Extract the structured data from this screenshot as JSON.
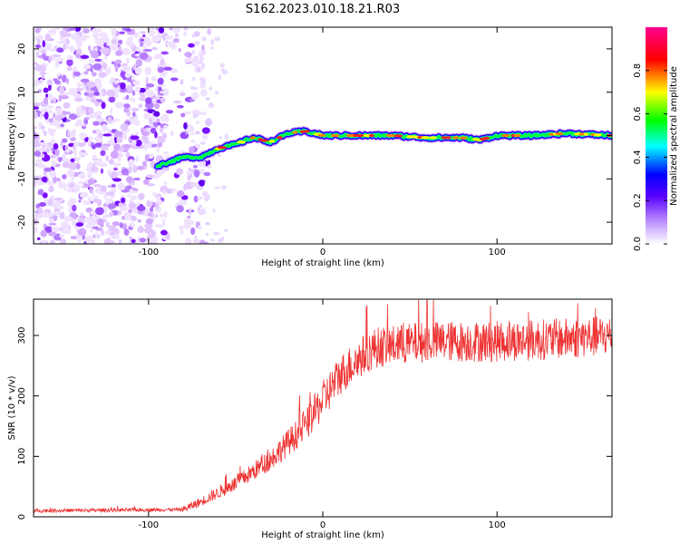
{
  "title": "S162.2023.010.18.21.R03",
  "chart_data": [
    {
      "type": "heatmap",
      "xlabel": "Height of straight line (km)",
      "ylabel": "Frequency (Hz)",
      "xlim": [
        -166,
        166
      ],
      "ylim": [
        -25,
        25
      ],
      "xticks": [
        -100,
        0,
        100
      ],
      "yticks": [
        -20,
        -10,
        0,
        10,
        20
      ],
      "colorbar": {
        "label": "Normalized spectral amplitude",
        "range": [
          0,
          1
        ],
        "ticks": [
          0.0,
          0.2,
          0.4,
          0.6,
          0.8
        ],
        "colors": [
          "#ffffff",
          "#6a00ff",
          "#0000ff",
          "#00ffff",
          "#00ff00",
          "#ffff00",
          "#ff0000",
          "#ff0090"
        ]
      },
      "ridge": {
        "x": [
          -95,
          -80,
          -70,
          -60,
          -50,
          -40,
          -30,
          -20,
          -10,
          0,
          20,
          40,
          60,
          80,
          90,
          100,
          120,
          140,
          166
        ],
        "freq": [
          -7,
          -5,
          -5,
          -3,
          -2,
          -0.5,
          -1.5,
          0.5,
          1,
          0,
          0,
          0,
          -0.5,
          -0.5,
          -1,
          0,
          0,
          0.5,
          0
        ]
      },
      "noise_region_x": [
        -166,
        -75
      ]
    },
    {
      "type": "line",
      "xlabel": "Height of straight line (km)",
      "ylabel": "SNR (10 * v/v)",
      "xlim": [
        -166,
        166
      ],
      "ylim": [
        0,
        360
      ],
      "xticks": [
        -100,
        0,
        100
      ],
      "yticks": [
        0,
        100,
        200,
        300
      ],
      "color": "#ee3333",
      "trend": {
        "x": [
          -166,
          -80,
          -70,
          -50,
          -30,
          -10,
          10,
          20,
          30,
          60,
          100,
          140,
          166
        ],
        "y": [
          10,
          12,
          25,
          55,
          95,
          150,
          235,
          260,
          280,
          290,
          290,
          295,
          300
        ]
      },
      "noise_scale": 30
    }
  ]
}
